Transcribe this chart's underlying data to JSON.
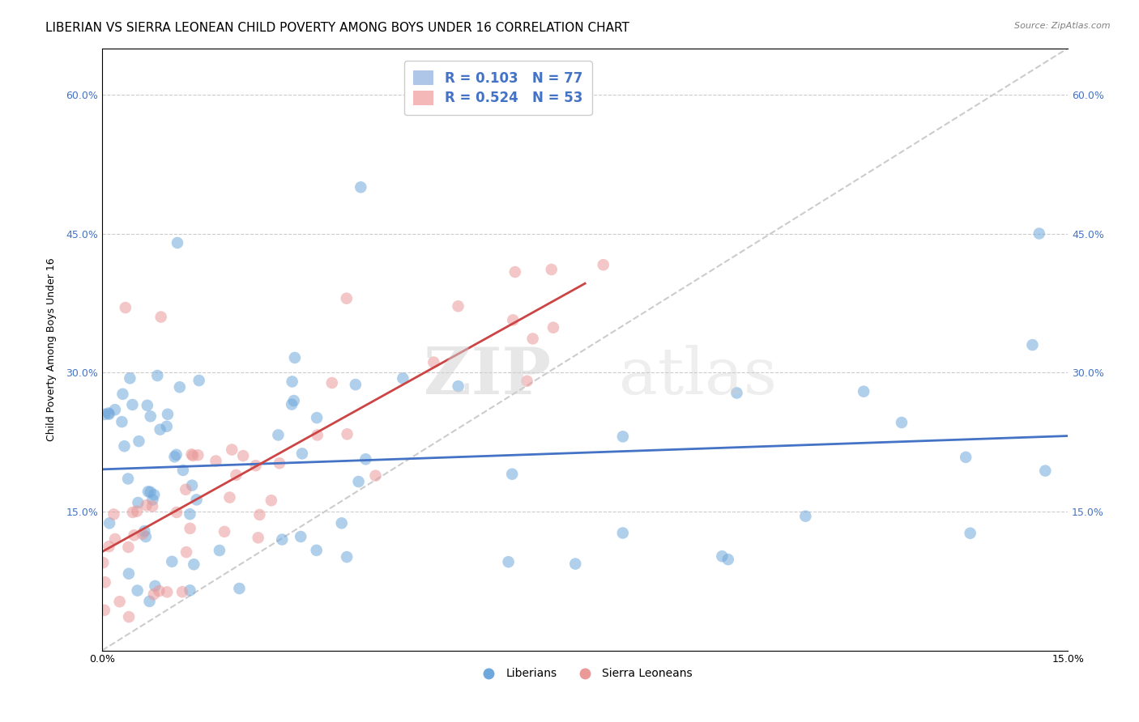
{
  "title": "LIBERIAN VS SIERRA LEONEAN CHILD POVERTY AMONG BOYS UNDER 16 CORRELATION CHART",
  "source": "Source: ZipAtlas.com",
  "ylabel": "Child Poverty Among Boys Under 16",
  "xlim": [
    0,
    0.15
  ],
  "ylim": [
    0,
    0.65
  ],
  "ytick_vals": [
    0.0,
    0.15,
    0.3,
    0.45,
    0.6
  ],
  "xtick_vals": [
    0.0,
    0.05,
    0.1,
    0.15
  ],
  "liberian_R": 0.103,
  "liberian_N": 77,
  "sierralone_R": 0.524,
  "sierralone_N": 53,
  "blue_color": "#6fa8dc",
  "pink_color": "#ea9999",
  "blue_line_color": "#4472c4",
  "pink_line_color": "#cc4444",
  "dashed_line_color": "#cccccc",
  "legend_label_1": "Liberians",
  "legend_label_2": "Sierra Leoneans",
  "watermark_zip": "ZIP",
  "watermark_atlas": "atlas",
  "title_fontsize": 11,
  "axis_fontsize": 9,
  "tick_fontsize": 9
}
